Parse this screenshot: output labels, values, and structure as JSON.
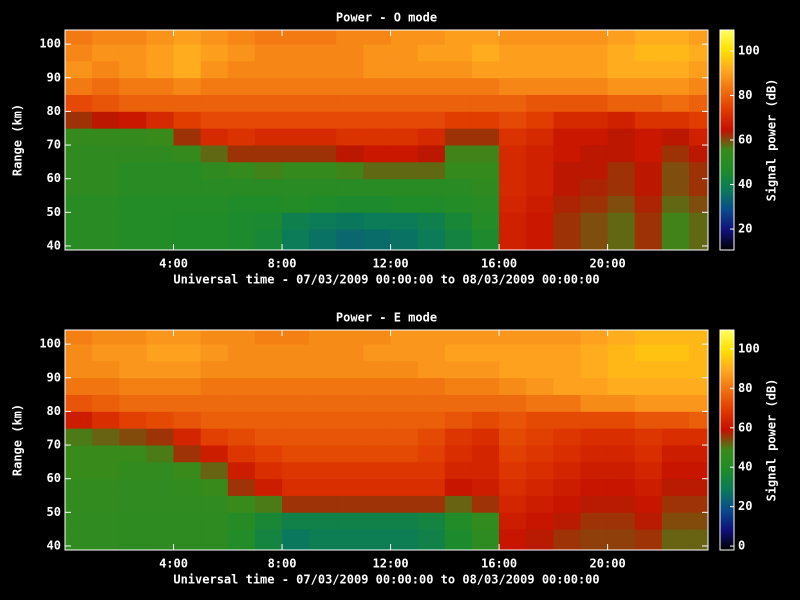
{
  "chart_data": [
    {
      "type": "heatmap",
      "title": "Power - O mode",
      "xlabel": "Universal time - 07/03/2009 00:00:00 to 08/03/2009 00:00:00",
      "ylabel": "Range (km)",
      "colorbar_label": "Signal power (dB)",
      "xbins": [
        0,
        1,
        2,
        3,
        4,
        5,
        6,
        7,
        8,
        9,
        10,
        11,
        12,
        13,
        14,
        15,
        16,
        17,
        18,
        19,
        20,
        21,
        22,
        23,
        24
      ],
      "ybins": [
        38,
        45,
        50,
        55,
        60,
        65,
        70,
        75,
        80,
        85,
        90,
        95,
        100,
        105
      ],
      "xlim": [
        0,
        23.7
      ],
      "ylim": [
        38.8,
        104.2
      ],
      "zlim": [
        10.6,
        109.4
      ],
      "xticks": [
        {
          "value": 4,
          "label": "4:00"
        },
        {
          "value": 8,
          "label": "8:00"
        },
        {
          "value": 12,
          "label": "12:00"
        },
        {
          "value": 16,
          "label": "16:00"
        },
        {
          "value": 20,
          "label": "20:00"
        }
      ],
      "yticks": [
        40,
        50,
        60,
        70,
        80,
        90,
        100
      ],
      "zticks": [
        20,
        40,
        60,
        80,
        100
      ],
      "colormap": [
        "#000000",
        "#10107a",
        "#0a4a8a",
        "#0a7a5a",
        "#1e8c2a",
        "#3a8a1a",
        "#c41000",
        "#e03a00",
        "#f07010",
        "#ffa820",
        "#ffe000",
        "#ffff60"
      ],
      "values": [
        [
          50,
          50,
          48,
          48,
          47,
          47,
          46,
          44,
          38,
          36,
          34,
          35,
          36,
          38,
          42,
          46,
          68,
          66,
          62,
          60,
          58,
          62,
          56,
          58
        ],
        [
          50,
          50,
          48,
          48,
          47,
          47,
          46,
          45,
          40,
          38,
          37,
          38,
          38,
          40,
          44,
          48,
          68,
          66,
          62,
          60,
          58,
          62,
          56,
          58
        ],
        [
          50,
          50,
          48,
          48,
          48,
          48,
          47,
          47,
          48,
          47,
          46,
          46,
          47,
          47,
          48,
          50,
          69,
          67,
          63,
          62,
          60,
          63,
          58,
          60
        ],
        [
          52,
          52,
          50,
          50,
          50,
          50,
          50,
          50,
          50,
          50,
          50,
          50,
          50,
          50,
          50,
          52,
          70,
          68,
          64,
          63,
          62,
          64,
          60,
          62
        ],
        [
          52,
          52,
          50,
          50,
          50,
          52,
          54,
          56,
          54,
          54,
          56,
          58,
          58,
          58,
          54,
          54,
          70,
          68,
          64,
          64,
          62,
          64,
          60,
          62
        ],
        [
          52,
          52,
          52,
          52,
          54,
          58,
          62,
          62,
          62,
          62,
          64,
          66,
          66,
          64,
          56,
          56,
          70,
          68,
          66,
          64,
          64,
          66,
          62,
          64
        ],
        [
          54,
          54,
          54,
          55,
          62,
          70,
          72,
          70,
          70,
          70,
          72,
          72,
          72,
          70,
          62,
          62,
          72,
          70,
          66,
          66,
          64,
          66,
          64,
          68
        ],
        [
          62,
          64,
          66,
          70,
          74,
          76,
          76,
          76,
          76,
          76,
          76,
          76,
          76,
          76,
          74,
          74,
          76,
          74,
          70,
          70,
          68,
          72,
          72,
          74
        ],
        [
          76,
          78,
          80,
          80,
          80,
          80,
          80,
          80,
          80,
          80,
          80,
          80,
          80,
          80,
          80,
          80,
          80,
          78,
          78,
          78,
          80,
          80,
          82,
          80
        ],
        [
          84,
          82,
          84,
          84,
          86,
          84,
          84,
          84,
          84,
          84,
          84,
          84,
          84,
          84,
          84,
          84,
          86,
          86,
          86,
          86,
          88,
          88,
          88,
          86
        ],
        [
          88,
          86,
          88,
          90,
          92,
          88,
          86,
          86,
          86,
          86,
          86,
          88,
          88,
          88,
          88,
          90,
          90,
          90,
          90,
          90,
          92,
          92,
          92,
          90
        ],
        [
          86,
          88,
          88,
          90,
          92,
          90,
          88,
          86,
          86,
          86,
          86,
          88,
          88,
          90,
          90,
          92,
          90,
          90,
          90,
          90,
          92,
          94,
          94,
          92
        ],
        [
          84,
          86,
          86,
          88,
          90,
          88,
          86,
          84,
          84,
          84,
          86,
          86,
          88,
          88,
          90,
          90,
          88,
          88,
          88,
          88,
          90,
          92,
          92,
          90
        ]
      ]
    },
    {
      "type": "heatmap",
      "title": "Power - E mode",
      "xlabel": "Universal time - 07/03/2009 00:00:00 to 08/03/2009 00:00:00",
      "ylabel": "Range (km)",
      "colorbar_label": "Signal power (dB)",
      "xbins": [
        0,
        1,
        2,
        3,
        4,
        5,
        6,
        7,
        8,
        9,
        10,
        11,
        12,
        13,
        14,
        15,
        16,
        17,
        18,
        19,
        20,
        21,
        22,
        23,
        24
      ],
      "ybins": [
        38,
        45,
        50,
        55,
        60,
        65,
        70,
        75,
        80,
        85,
        90,
        95,
        100,
        105
      ],
      "xlim": [
        0,
        23.7
      ],
      "ylim": [
        38.8,
        104.2
      ],
      "zlim": [
        -2,
        109.6
      ],
      "xticks": [
        {
          "value": 4,
          "label": "4:00"
        },
        {
          "value": 8,
          "label": "8:00"
        },
        {
          "value": 12,
          "label": "12:00"
        },
        {
          "value": 16,
          "label": "16:00"
        },
        {
          "value": 20,
          "label": "20:00"
        }
      ],
      "yticks": [
        40,
        50,
        60,
        70,
        80,
        90,
        100
      ],
      "zticks": [
        0,
        20,
        40,
        60,
        80,
        100
      ],
      "colormap": [
        "#000000",
        "#10107a",
        "#0a4a8a",
        "#0a7a5a",
        "#1e8c2a",
        "#3a8a1a",
        "#c41000",
        "#e03a00",
        "#f07010",
        "#ffa820",
        "#ffe000",
        "#ffff60"
      ],
      "values": [
        [
          45,
          45,
          44,
          44,
          44,
          44,
          40,
          34,
          28,
          30,
          30,
          30,
          30,
          32,
          38,
          44,
          60,
          58,
          56,
          55,
          55,
          56,
          52,
          52
        ],
        [
          45,
          45,
          44,
          44,
          44,
          44,
          42,
          36,
          32,
          32,
          32,
          32,
          32,
          34,
          40,
          46,
          62,
          60,
          58,
          56,
          56,
          58,
          54,
          54
        ],
        [
          46,
          46,
          45,
          45,
          45,
          45,
          48,
          50,
          56,
          56,
          56,
          56,
          56,
          56,
          52,
          56,
          64,
          62,
          60,
          58,
          58,
          60,
          56,
          56
        ],
        [
          46,
          46,
          45,
          45,
          46,
          48,
          56,
          62,
          66,
          66,
          66,
          66,
          66,
          66,
          60,
          62,
          66,
          64,
          62,
          60,
          60,
          62,
          58,
          58
        ],
        [
          48,
          48,
          46,
          46,
          48,
          52,
          62,
          66,
          68,
          68,
          68,
          68,
          68,
          68,
          64,
          64,
          68,
          66,
          64,
          62,
          62,
          64,
          60,
          60
        ],
        [
          48,
          48,
          48,
          50,
          56,
          62,
          68,
          70,
          72,
          72,
          72,
          72,
          72,
          70,
          66,
          64,
          70,
          68,
          66,
          64,
          64,
          66,
          62,
          62
        ],
        [
          50,
          52,
          54,
          56,
          64,
          70,
          72,
          74,
          74,
          74,
          74,
          74,
          74,
          72,
          68,
          66,
          72,
          70,
          68,
          66,
          66,
          68,
          66,
          66
        ],
        [
          62,
          66,
          70,
          72,
          74,
          76,
          76,
          76,
          76,
          76,
          76,
          76,
          76,
          76,
          74,
          72,
          74,
          72,
          72,
          72,
          72,
          74,
          74,
          76
        ],
        [
          74,
          76,
          78,
          78,
          78,
          78,
          78,
          78,
          78,
          78,
          78,
          78,
          78,
          78,
          78,
          78,
          78,
          80,
          80,
          84,
          84,
          86,
          86,
          86
        ],
        [
          80,
          80,
          82,
          82,
          82,
          80,
          80,
          80,
          80,
          80,
          80,
          80,
          80,
          80,
          82,
          82,
          84,
          86,
          88,
          88,
          90,
          90,
          90,
          90
        ],
        [
          84,
          84,
          86,
          86,
          86,
          84,
          84,
          84,
          84,
          84,
          84,
          84,
          84,
          86,
          86,
          86,
          88,
          88,
          88,
          90,
          92,
          92,
          92,
          92
        ],
        [
          84,
          86,
          86,
          88,
          88,
          86,
          84,
          84,
          84,
          84,
          84,
          86,
          86,
          86,
          88,
          88,
          88,
          88,
          88,
          90,
          92,
          94,
          94,
          92
        ],
        [
          82,
          84,
          84,
          86,
          86,
          84,
          84,
          82,
          82,
          84,
          84,
          84,
          86,
          86,
          86,
          86,
          86,
          86,
          86,
          88,
          90,
          92,
          92,
          92
        ]
      ]
    }
  ]
}
